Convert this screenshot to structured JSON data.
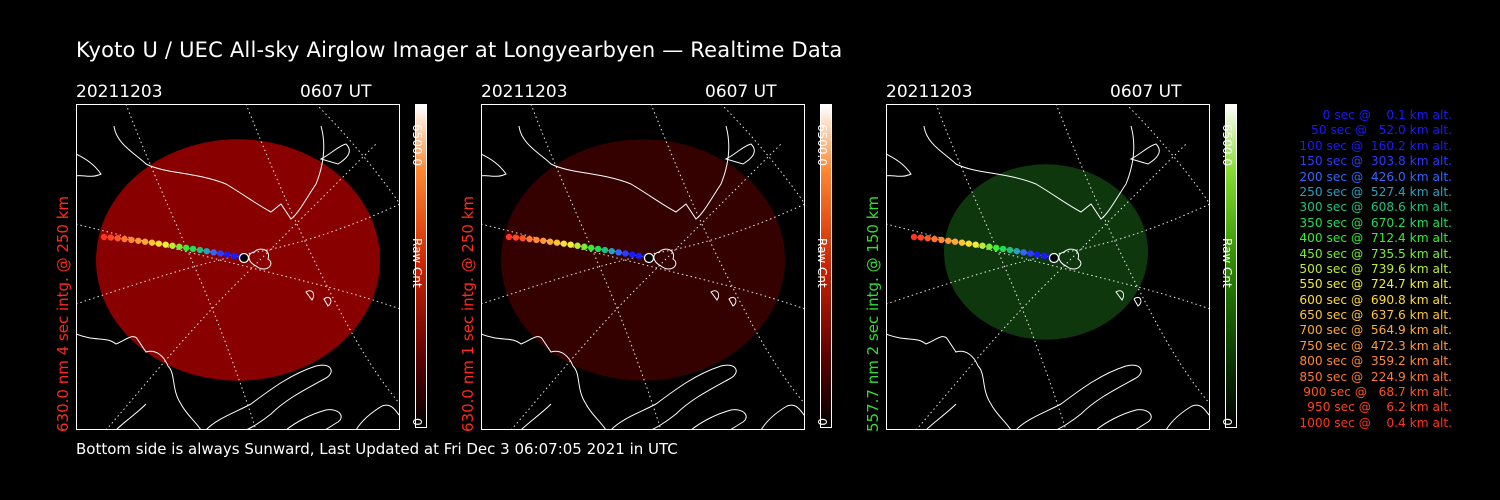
{
  "title": "Kyoto U / UEC All-sky Airglow Imager at Longyearbyen — Realtime Data",
  "footer": "Bottom side is always Sunward, Last Updated at Fri Dec  3 06:07:05 2021 in UTC",
  "colors": {
    "red": "#ff2a1a",
    "green": "#33dd33",
    "white": "#ffffff"
  },
  "panels": [
    {
      "date": "20211203",
      "time": "0607 UT",
      "side_label": "630.0 nm 4 sec intg. @ 250 km",
      "label_color": "#ff2a1a",
      "cbar_max": "6500.0",
      "cbar_unit": "Raw Cnt",
      "cbar_min": "0",
      "image_color": "#a00000",
      "image_alpha": 0.85,
      "cbar_gradient": "red"
    },
    {
      "date": "20211203",
      "time": "0607 UT",
      "side_label": "630.0 nm 1 sec intg. @ 250 km",
      "label_color": "#ff2a1a",
      "cbar_max": "6500.0",
      "cbar_unit": "Raw Cnt",
      "cbar_min": "0",
      "image_color": "#3a0000",
      "image_alpha": 0.9,
      "cbar_gradient": "red"
    },
    {
      "date": "20211203",
      "time": "0607 UT",
      "side_label": "557.7 nm 2 sec intg. @ 150 km",
      "label_color": "#33dd33",
      "cbar_max": "6500.0",
      "cbar_unit": "Raw Cnt",
      "cbar_min": "0",
      "image_color": "#0f3a0f",
      "image_alpha": 0.95,
      "cbar_gradient": "green"
    }
  ],
  "legend": [
    {
      "text": "   0 sec @    0.1 km alt.",
      "color": "#1a1aff"
    },
    {
      "text": "  50 sec @   52.0 km alt.",
      "color": "#1a1aff"
    },
    {
      "text": " 100 sec @  160.2 km alt.",
      "color": "#1a1aff"
    },
    {
      "text": " 150 sec @  303.8 km alt.",
      "color": "#2a3aff"
    },
    {
      "text": " 200 sec @  426.0 km alt.",
      "color": "#3366ff"
    },
    {
      "text": " 250 sec @  527.4 km alt.",
      "color": "#2aa0c0"
    },
    {
      "text": " 300 sec @  608.6 km alt.",
      "color": "#22c080"
    },
    {
      "text": " 350 sec @  670.2 km alt.",
      "color": "#22dd55"
    },
    {
      "text": " 400 sec @  712.4 km alt.",
      "color": "#33ee33"
    },
    {
      "text": " 450 sec @  735.5 km alt.",
      "color": "#77ee33"
    },
    {
      "text": " 500 sec @  739.6 km alt.",
      "color": "#bbee33"
    },
    {
      "text": " 550 sec @  724.7 km alt.",
      "color": "#eeee33"
    },
    {
      "text": " 600 sec @  690.8 km alt.",
      "color": "#ffdd33"
    },
    {
      "text": " 650 sec @  637.6 km alt.",
      "color": "#ffc433"
    },
    {
      "text": " 700 sec @  564.9 km alt.",
      "color": "#ffaa33"
    },
    {
      "text": " 750 sec @  472.3 km alt.",
      "color": "#ff9933"
    },
    {
      "text": " 800 sec @  359.2 km alt.",
      "color": "#ff8833"
    },
    {
      "text": " 850 sec @  224.9 km alt.",
      "color": "#ff7733"
    },
    {
      "text": " 900 sec @   68.7 km alt.",
      "color": "#ff5522"
    },
    {
      "text": " 950 sec @    6.2 km alt.",
      "color": "#ff4422"
    },
    {
      "text": "1000 sec @    0.4 km alt.",
      "color": "#ff3322"
    }
  ]
}
